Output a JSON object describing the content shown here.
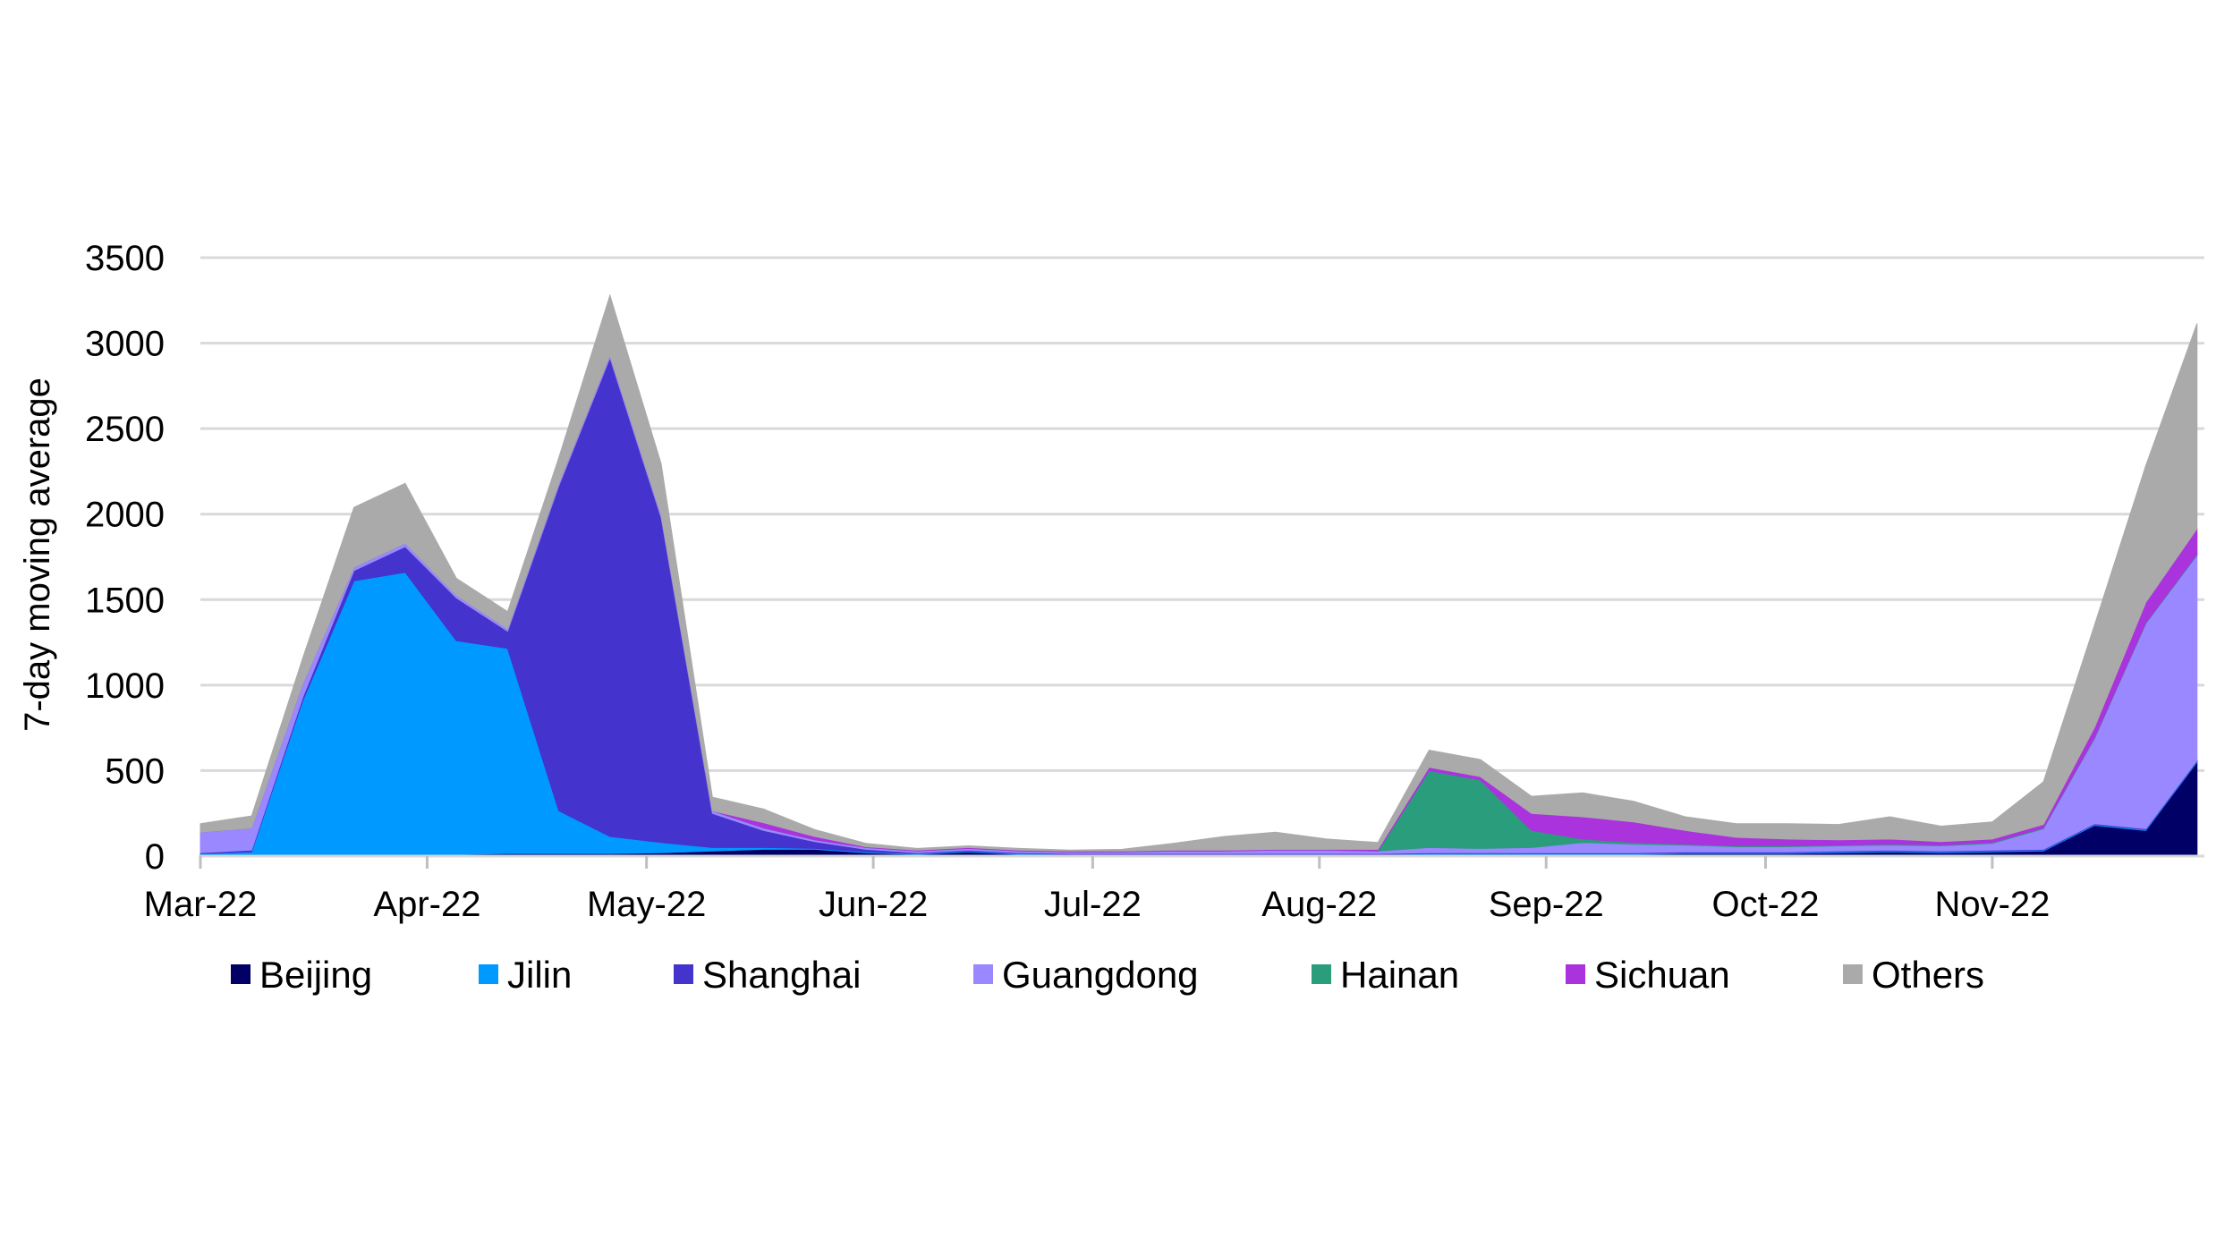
{
  "chart_data": {
    "type": "area",
    "stacked": true,
    "title": "",
    "xlabel": "",
    "ylabel": "7-day moving average",
    "ylim": [
      0,
      3500
    ],
    "yticks": [
      0,
      500,
      1000,
      1500,
      2000,
      2500,
      3000,
      3500
    ],
    "grid": true,
    "legend_position": "bottom",
    "x": [
      "2022-03-01",
      "2022-03-08",
      "2022-03-15",
      "2022-03-22",
      "2022-03-29",
      "2022-04-05",
      "2022-04-12",
      "2022-04-19",
      "2022-04-26",
      "2022-05-03",
      "2022-05-10",
      "2022-05-17",
      "2022-05-24",
      "2022-05-31",
      "2022-06-07",
      "2022-06-14",
      "2022-06-21",
      "2022-06-28",
      "2022-07-05",
      "2022-07-12",
      "2022-07-19",
      "2022-07-26",
      "2022-08-02",
      "2022-08-09",
      "2022-08-16",
      "2022-08-23",
      "2022-08-30",
      "2022-09-06",
      "2022-09-13",
      "2022-09-20",
      "2022-09-27",
      "2022-10-04",
      "2022-10-11",
      "2022-10-18",
      "2022-10-25",
      "2022-11-01",
      "2022-11-08",
      "2022-11-15",
      "2022-11-22",
      "2022-11-29"
    ],
    "x_tick_labels": [
      "Mar-22",
      "Apr-22",
      "May-22",
      "Jun-22",
      "Jul-22",
      "Aug-22",
      "Sep-22",
      "Oct-22",
      "Nov-22"
    ],
    "x_tick_dates": [
      "2022-03-01",
      "2022-04-01",
      "2022-05-01",
      "2022-06-01",
      "2022-07-01",
      "2022-08-01",
      "2022-09-01",
      "2022-10-01",
      "2022-11-01"
    ],
    "x_range": [
      "2022-03-01",
      "2022-11-30"
    ],
    "series": [
      {
        "name": "Beijing",
        "color": "#000066",
        "values": [
          5,
          5,
          10,
          10,
          10,
          10,
          15,
          15,
          15,
          20,
          30,
          40,
          40,
          20,
          10,
          25,
          10,
          5,
          5,
          5,
          5,
          5,
          5,
          5,
          10,
          10,
          10,
          10,
          10,
          15,
          15,
          15,
          20,
          25,
          20,
          25,
          30,
          180,
          150,
          550
        ]
      },
      {
        "name": "Jilin",
        "color": "#0099ff",
        "values": [
          10,
          20,
          900,
          1600,
          1650,
          1250,
          1200,
          250,
          100,
          60,
          20,
          10,
          5,
          5,
          5,
          5,
          5,
          5,
          5,
          5,
          5,
          5,
          5,
          5,
          5,
          5,
          5,
          5,
          5,
          5,
          5,
          5,
          5,
          5,
          5,
          5,
          5,
          5,
          5,
          5
        ]
      },
      {
        "name": "Shanghai",
        "color": "#4433cc",
        "values": [
          5,
          10,
          20,
          60,
          150,
          250,
          100,
          1900,
          2800,
          1900,
          200,
          100,
          40,
          15,
          5,
          5,
          5,
          5,
          5,
          5,
          5,
          5,
          5,
          5,
          5,
          5,
          5,
          5,
          5,
          5,
          5,
          5,
          5,
          5,
          5,
          5,
          5,
          5,
          5,
          5
        ]
      },
      {
        "name": "Guangdong",
        "color": "#9988ff",
        "values": [
          120,
          130,
          80,
          20,
          20,
          15,
          15,
          15,
          15,
          15,
          15,
          15,
          10,
          10,
          10,
          10,
          10,
          10,
          10,
          15,
          15,
          20,
          20,
          15,
          30,
          25,
          30,
          60,
          50,
          40,
          30,
          30,
          30,
          30,
          30,
          40,
          120,
          500,
          1200,
          1200
        ]
      },
      {
        "name": "Hainan",
        "color": "#2a9d7c",
        "values": [
          0,
          0,
          0,
          0,
          0,
          0,
          0,
          0,
          0,
          0,
          0,
          0,
          0,
          0,
          0,
          0,
          0,
          0,
          0,
          0,
          0,
          0,
          0,
          0,
          450,
          400,
          100,
          20,
          10,
          5,
          5,
          5,
          5,
          5,
          5,
          5,
          5,
          5,
          5,
          5
        ]
      },
      {
        "name": "Sichuan",
        "color": "#aa33dd",
        "values": [
          0,
          0,
          0,
          0,
          0,
          0,
          0,
          0,
          0,
          0,
          0,
          30,
          20,
          5,
          5,
          5,
          5,
          5,
          5,
          5,
          5,
          5,
          5,
          10,
          20,
          20,
          100,
          130,
          120,
          80,
          50,
          40,
          30,
          30,
          20,
          20,
          20,
          60,
          120,
          150
        ]
      },
      {
        "name": "Others",
        "color": "#aaaaaa",
        "values": [
          50,
          70,
          150,
          350,
          350,
          100,
          100,
          150,
          350,
          300,
          80,
          80,
          40,
          20,
          10,
          10,
          10,
          5,
          10,
          40,
          80,
          100,
          60,
          40,
          100,
          100,
          100,
          140,
          120,
          80,
          80,
          90,
          90,
          130,
          90,
          100,
          250,
          600,
          800,
          1200
        ]
      }
    ]
  }
}
